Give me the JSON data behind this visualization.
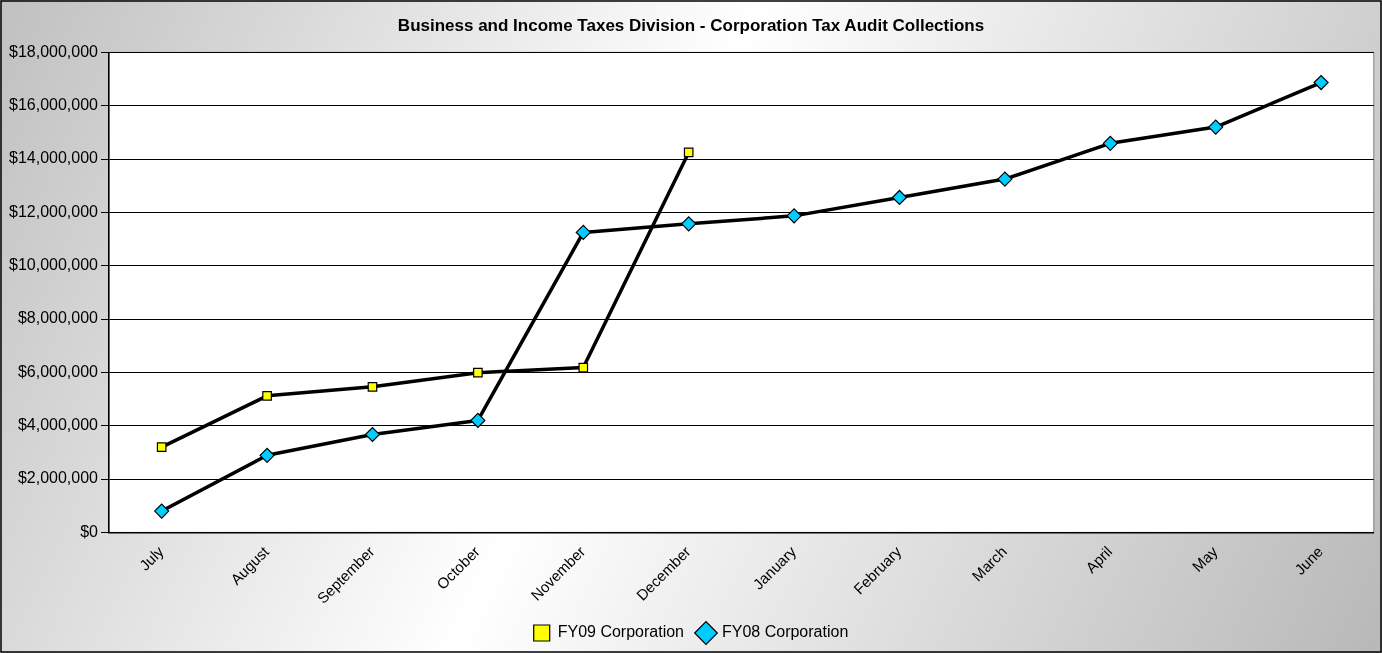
{
  "chart_data": {
    "type": "line",
    "title": "Business and Income Taxes Division - Corporation Tax Audit Collections",
    "categories": [
      "July",
      "August",
      "September",
      "October",
      "November",
      "December",
      "January",
      "February",
      "March",
      "April",
      "May",
      "June"
    ],
    "series": [
      {
        "name": "FY09 Corporation",
        "color": "#ffff00",
        "marker": "square",
        "values": [
          3200000,
          5120000,
          5460000,
          5990000,
          6180000,
          14250000,
          null,
          null,
          null,
          null,
          null,
          null
        ]
      },
      {
        "name": "FY08 Corporation",
        "color": "#00ccff",
        "marker": "diamond",
        "values": [
          800000,
          2890000,
          3670000,
          4200000,
          11250000,
          11570000,
          11870000,
          12560000,
          13250000,
          14590000,
          15200000,
          16870000
        ]
      }
    ],
    "ylim": [
      0,
      18000000
    ],
    "yticks": [
      {
        "value": 0,
        "label": "$0"
      },
      {
        "value": 2000000,
        "label": "$2,000,000"
      },
      {
        "value": 4000000,
        "label": "$4,000,000"
      },
      {
        "value": 6000000,
        "label": "$6,000,000"
      },
      {
        "value": 8000000,
        "label": "$8,000,000"
      },
      {
        "value": 10000000,
        "label": "$10,000,000"
      },
      {
        "value": 12000000,
        "label": "$12,000,000"
      },
      {
        "value": 14000000,
        "label": "$14,000,000"
      },
      {
        "value": 16000000,
        "label": "$16,000,000"
      },
      {
        "value": 18000000,
        "label": "$18,000,000"
      }
    ],
    "grid": "y",
    "legend": "bottom",
    "line_style": "solid"
  }
}
